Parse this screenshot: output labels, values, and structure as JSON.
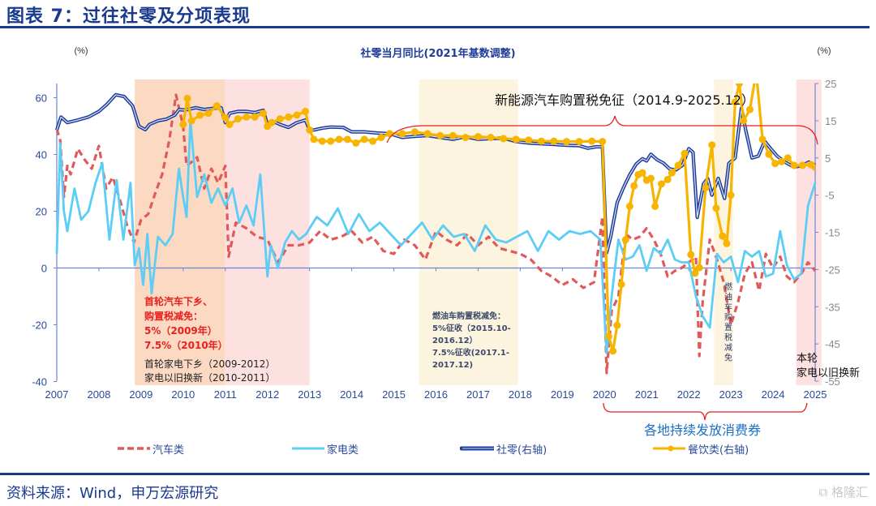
{
  "figure_title": "图表 7：过往社零及分项表现",
  "source": "资料来源：Wind，申万宏源研究",
  "watermark": "格隆汇",
  "chart_data": {
    "type": "line",
    "title": "社零当月同比(2021年基数调整)",
    "ylabel_left": "(%)",
    "ylabel_right": "(%)",
    "ylim_left": [
      -40,
      60
    ],
    "yticks_left": [
      "60",
      "40",
      "20",
      "0",
      "-20",
      "-40"
    ],
    "ylim_right": [
      -55,
      25
    ],
    "yticks_right": [
      "25",
      "15",
      "5",
      "-5",
      "-15",
      "-25",
      "-35",
      "-45",
      "-55"
    ],
    "xlim": [
      2007,
      2025
    ],
    "xticks": [
      "2007",
      "2008",
      "2009",
      "2010",
      "2011",
      "2012",
      "2013",
      "2014",
      "2015",
      "2016",
      "2017",
      "2018",
      "2019",
      "2020",
      "2021",
      "2022",
      "2023",
      "2024",
      "2025"
    ],
    "legend": [
      {
        "name": "汽车类",
        "style": "dashed",
        "color": "#e05a5a",
        "axis": "left"
      },
      {
        "name": "家电类",
        "style": "solid",
        "color": "#5ccdf5",
        "axis": "left"
      },
      {
        "name": "社零(右轴)",
        "style": "double",
        "color": "#1f3d9a",
        "axis": "right"
      },
      {
        "name": "餐饮类(右轴)",
        "style": "solid-marker",
        "color": "#f7b500",
        "axis": "right"
      }
    ],
    "legend_position": "bottom",
    "shaded_periods": [
      {
        "from": 2008.85,
        "to": 2011.0,
        "color": "#fbd9c2",
        "label": "policy-auto-appliance-2009"
      },
      {
        "from": 2011.0,
        "to": 2013.0,
        "color": "#fde0e0",
        "label": "policy-appliance-2011"
      },
      {
        "from": 2015.6,
        "to": 2017.95,
        "color": "#fdf4df",
        "label": "fuel-car-tax"
      },
      {
        "from": 2022.6,
        "to": 2023.05,
        "color": "#fdf4df",
        "label": "fuel-car-tax-2022"
      },
      {
        "from": 2024.55,
        "to": 2025.15,
        "color": "#fde0e0",
        "label": "current-trade-in"
      }
    ],
    "annotations": {
      "auto_policy_lines": [
        "首轮汽车下乡、",
        "购置税减免：",
        "5%（2009年）",
        "7.5%（2010年）"
      ],
      "appliance_policy_lines": [
        "首轮家电下乡（2009-2012）",
        "家电以旧换新（2010-2011）"
      ],
      "fuel_tax_lines": [
        "燃油车购置税减免：",
        "5%征收（2015.10-",
        "2016.12）",
        "7.5%征收(2017.1-",
        "2017.12)"
      ],
      "nev_tax": "新能源汽车购置税免征（2014.9-2025.12）",
      "fuel_tax_2022": "燃油车购置税减免",
      "trade_in_lines": [
        "本轮",
        "家电以旧换新"
      ],
      "vouchers": "各地持续发放消费券"
    },
    "series": [
      {
        "name": "社零(右轴)",
        "axis": "right",
        "x": [
          2007.0,
          2007.1,
          2007.25,
          2007.5,
          2007.75,
          2008.0,
          2008.2,
          2008.4,
          2008.6,
          2008.8,
          2008.95,
          2009.1,
          2009.2,
          2009.4,
          2009.6,
          2009.8,
          2009.9,
          2010.0,
          2010.1,
          2010.3,
          2010.5,
          2010.7,
          2010.9,
          2011.0,
          2011.1,
          2011.3,
          2011.5,
          2011.7,
          2011.9,
          2012.0,
          2012.1,
          2012.3,
          2012.5,
          2012.7,
          2012.9,
          2013.0,
          2013.1,
          2013.3,
          2013.5,
          2013.8,
          2014.0,
          2014.3,
          2014.6,
          2014.9,
          2015.2,
          2015.5,
          2015.8,
          2016.1,
          2016.4,
          2016.7,
          2017.0,
          2017.3,
          2017.6,
          2017.9,
          2018.2,
          2018.5,
          2018.8,
          2019.1,
          2019.4,
          2019.6,
          2019.8,
          2019.95,
          2020.05,
          2020.15,
          2020.3,
          2020.45,
          2020.6,
          2020.75,
          2020.9,
          2021.0,
          2021.1,
          2021.25,
          2021.4,
          2021.55,
          2021.7,
          2021.85,
          2022.0,
          2022.1,
          2022.2,
          2022.35,
          2022.45,
          2022.55,
          2022.7,
          2022.85,
          2022.95,
          2023.1,
          2023.25,
          2023.35,
          2023.5,
          2023.65,
          2023.8,
          2023.95,
          2024.1,
          2024.3,
          2024.5,
          2024.7,
          2024.85,
          2025.0
        ],
        "y": [
          12.5,
          16.0,
          14.5,
          15.2,
          16.0,
          17.5,
          19.5,
          22.0,
          21.5,
          19.0,
          13.5,
          12.6,
          14.0,
          15.0,
          15.4,
          16.5,
          18.0,
          17.9,
          18.0,
          18.5,
          18.0,
          18.3,
          18.5,
          14.5,
          17.0,
          17.5,
          17.5,
          17.2,
          17.8,
          14.0,
          15.0,
          14.0,
          13.2,
          14.5,
          15.2,
          12.5,
          12.5,
          13.0,
          13.3,
          13.2,
          12.0,
          12.0,
          11.7,
          11.5,
          10.5,
          10.8,
          11.0,
          10.5,
          10.0,
          10.7,
          10.0,
          10.2,
          10.3,
          9.4,
          9.0,
          8.8,
          8.6,
          8.4,
          8.3,
          7.6,
          8.0,
          8.0,
          -20.5,
          -16.0,
          -7.0,
          -3.0,
          0.5,
          3.3,
          4.8,
          4.2,
          6.0,
          4.5,
          3.6,
          2.0,
          1.8,
          3.0,
          7.5,
          6.5,
          -11.0,
          -2.0,
          -0.5,
          -5.0,
          -0.5,
          -5.9,
          3.5,
          5.0,
          18.4,
          12.6,
          5.0,
          5.5,
          9.5,
          7.4,
          5.5,
          3.8,
          2.5,
          3.0,
          3.9,
          3.0
        ]
      },
      {
        "name": "餐饮类(右轴)",
        "axis": "right",
        "x": [
          2010.0,
          2010.1,
          2010.2,
          2010.4,
          2010.6,
          2010.8,
          2011.0,
          2011.1,
          2011.3,
          2011.5,
          2011.7,
          2011.9,
          2012.0,
          2012.1,
          2012.3,
          2012.5,
          2012.7,
          2012.9,
          2013.0,
          2013.1,
          2013.3,
          2013.5,
          2013.7,
          2013.9,
          2014.1,
          2014.3,
          2014.5,
          2014.7,
          2014.9,
          2015.2,
          2015.5,
          2015.8,
          2016.1,
          2016.4,
          2016.7,
          2017.0,
          2017.3,
          2017.6,
          2017.9,
          2018.2,
          2018.5,
          2018.8,
          2019.1,
          2019.4,
          2019.7,
          2019.95,
          2020.1,
          2020.2,
          2020.3,
          2020.4,
          2020.5,
          2020.6,
          2020.7,
          2020.8,
          2020.9,
          2021.0,
          2021.1,
          2021.2,
          2021.35,
          2021.5,
          2021.6,
          2021.75,
          2021.9,
          2022.05,
          2022.15,
          2022.25,
          2022.4,
          2022.55,
          2022.65,
          2022.8,
          2022.9,
          2023.0,
          2023.1,
          2023.2,
          2023.3,
          2023.45,
          2023.6,
          2023.75,
          2023.9,
          2024.05,
          2024.2,
          2024.35,
          2024.5,
          2024.7,
          2024.9,
          2025.0
        ],
        "y": [
          14.0,
          21.0,
          15.0,
          16.5,
          17.0,
          19.0,
          15.8,
          14.0,
          15.5,
          16.0,
          16.0,
          17.0,
          13.5,
          14.5,
          15.5,
          16.0,
          16.5,
          17.5,
          12.5,
          10.0,
          9.5,
          9.5,
          10.0,
          10.0,
          9.0,
          10.0,
          9.5,
          10.5,
          11.5,
          11.5,
          12.0,
          11.5,
          11.0,
          11.0,
          10.5,
          10.7,
          10.5,
          10.2,
          10.0,
          9.8,
          9.5,
          9.5,
          9.4,
          9.4,
          9.5,
          9.4,
          -43.0,
          -46.9,
          -40.0,
          -29.0,
          -17.0,
          -8.0,
          -2.5,
          0.5,
          1.0,
          -1.0,
          -0.5,
          -8.0,
          -2.0,
          -0.8,
          1.0,
          3.0,
          6.2,
          -21.0,
          -26.0,
          -24.5,
          -3.0,
          8.5,
          -8.5,
          -16.0,
          -18.0,
          -5.0,
          20.0,
          25.0,
          15.0,
          18.0,
          28.0,
          10.0,
          6.0,
          3.5,
          4.0,
          5.0,
          3.0,
          3.0,
          3.2,
          2.5
        ]
      },
      {
        "name": "汽车类",
        "axis": "left",
        "x": [
          2007.0,
          2007.08,
          2007.17,
          2007.25,
          2007.33,
          2007.5,
          2007.67,
          2007.83,
          2008.0,
          2008.17,
          2008.33,
          2008.5,
          2008.67,
          2008.83,
          2009.0,
          2009.17,
          2009.33,
          2009.5,
          2009.67,
          2009.83,
          2010.0,
          2010.08,
          2010.17,
          2010.33,
          2010.5,
          2010.67,
          2010.83,
          2011.0,
          2011.08,
          2011.25,
          2011.5,
          2011.75,
          2012.0,
          2012.25,
          2012.5,
          2012.75,
          2013.0,
          2013.25,
          2013.5,
          2013.75,
          2014.0,
          2014.25,
          2014.5,
          2014.75,
          2015.0,
          2015.25,
          2015.5,
          2015.75,
          2016.0,
          2016.25,
          2016.5,
          2016.75,
          2017.0,
          2017.25,
          2017.5,
          2017.75,
          2018.0,
          2018.25,
          2018.5,
          2018.75,
          2019.0,
          2019.25,
          2019.5,
          2019.75,
          2019.95,
          2020.05,
          2020.17,
          2020.33,
          2020.5,
          2020.67,
          2020.83,
          2021.0,
          2021.17,
          2021.33,
          2021.5,
          2021.67,
          2021.83,
          2022.0,
          2022.17,
          2022.25,
          2022.33,
          2022.5,
          2022.67,
          2022.83,
          2023.0,
          2023.17,
          2023.33,
          2023.5,
          2023.67,
          2023.83,
          2024.0,
          2024.17,
          2024.33,
          2024.5,
          2024.67,
          2024.83,
          2025.0
        ],
        "y": [
          49.0,
          45.0,
          25.0,
          36.0,
          33.0,
          42.0,
          38.0,
          35.0,
          43.0,
          28.0,
          32.0,
          24.0,
          15.0,
          9.0,
          17.0,
          19.0,
          26.0,
          33.0,
          45.0,
          61.0,
          50.0,
          36.0,
          37.0,
          39.0,
          28.0,
          35.0,
          30.0,
          36.0,
          4.0,
          16.0,
          14.0,
          11.0,
          10.0,
          2.0,
          8.0,
          8.0,
          9.0,
          13.0,
          10.0,
          11.0,
          13.0,
          9.0,
          11.0,
          6.0,
          5.0,
          10.0,
          8.0,
          3.0,
          13.0,
          10.0,
          8.0,
          12.0,
          8.0,
          11.0,
          7.0,
          6.0,
          5.0,
          3.0,
          -1.0,
          -3.0,
          -6.0,
          -4.0,
          -7.0,
          -5.0,
          18.0,
          -37.0,
          -15.0,
          -10.0,
          12.0,
          10.0,
          11.0,
          14.0,
          10.0,
          5.0,
          -3.0,
          -1.0,
          0.0,
          2.0,
          4.0,
          -31.0,
          -12.0,
          10.0,
          3.0,
          -5.0,
          -20.0,
          -12.0,
          -2.0,
          2.0,
          -8.0,
          5.0,
          0.0,
          4.0,
          -3.0,
          -5.0,
          -2.0,
          2.0,
          -1.0
        ]
      },
      {
        "name": "家电类",
        "axis": "left",
        "x": [
          2007.0,
          2007.08,
          2007.17,
          2007.25,
          2007.42,
          2007.58,
          2007.75,
          2007.92,
          2008.08,
          2008.25,
          2008.42,
          2008.58,
          2008.75,
          2008.85,
          2008.95,
          2009.05,
          2009.15,
          2009.25,
          2009.4,
          2009.58,
          2009.75,
          2009.9,
          2010.0,
          2010.08,
          2010.17,
          2010.33,
          2010.5,
          2010.67,
          2010.83,
          2011.0,
          2011.17,
          2011.33,
          2011.5,
          2011.67,
          2011.83,
          2012.0,
          2012.08,
          2012.25,
          2012.42,
          2012.58,
          2012.75,
          2012.92,
          2013.17,
          2013.42,
          2013.67,
          2013.92,
          2014.17,
          2014.42,
          2014.67,
          2014.92,
          2015.17,
          2015.42,
          2015.67,
          2015.92,
          2016.17,
          2016.42,
          2016.67,
          2016.92,
          2017.17,
          2017.42,
          2017.67,
          2017.92,
          2018.17,
          2018.42,
          2018.67,
          2018.92,
          2019.17,
          2019.42,
          2019.67,
          2019.9,
          2020.05,
          2020.17,
          2020.33,
          2020.5,
          2020.67,
          2020.83,
          2021.0,
          2021.17,
          2021.33,
          2021.5,
          2021.67,
          2021.83,
          2022.0,
          2022.17,
          2022.33,
          2022.5,
          2022.67,
          2022.83,
          2023.0,
          2023.17,
          2023.33,
          2023.5,
          2023.67,
          2023.83,
          2024.0,
          2024.17,
          2024.33,
          2024.5,
          2024.67,
          2024.83,
          2025.0
        ],
        "y": [
          5.0,
          44.0,
          20.0,
          13.0,
          28.0,
          17.0,
          20.0,
          30.0,
          37.0,
          10.0,
          31.0,
          10.0,
          30.0,
          1.0,
          7.0,
          -6.0,
          12.0,
          -9.0,
          11.0,
          8.0,
          12.0,
          35.0,
          25.0,
          18.0,
          52.0,
          25.0,
          33.0,
          23.0,
          28.0,
          22.0,
          28.0,
          16.0,
          22.0,
          15.0,
          33.0,
          -3.0,
          8.0,
          0.0,
          9.0,
          13.0,
          10.0,
          12.0,
          18.0,
          15.0,
          21.0,
          12.0,
          19.0,
          13.0,
          16.0,
          12.0,
          8.0,
          12.0,
          16.0,
          10.0,
          15.0,
          11.0,
          12.0,
          6.0,
          15.0,
          10.0,
          9.0,
          11.0,
          13.0,
          6.0,
          13.0,
          10.0,
          13.0,
          12.0,
          13.0,
          10.0,
          -30.0,
          -10.0,
          10.0,
          3.0,
          4.0,
          8.0,
          -1.0,
          7.0,
          5.0,
          10.0,
          3.0,
          2.0,
          2.0,
          -10.0,
          -17.0,
          -21.0,
          5.0,
          2.0,
          4.0,
          -5.0,
          6.0,
          4.0,
          6.0,
          -3.0,
          -2.0,
          13.0,
          1.0,
          -4.0,
          -2.0,
          22.0,
          30.0
        ]
      }
    ]
  }
}
